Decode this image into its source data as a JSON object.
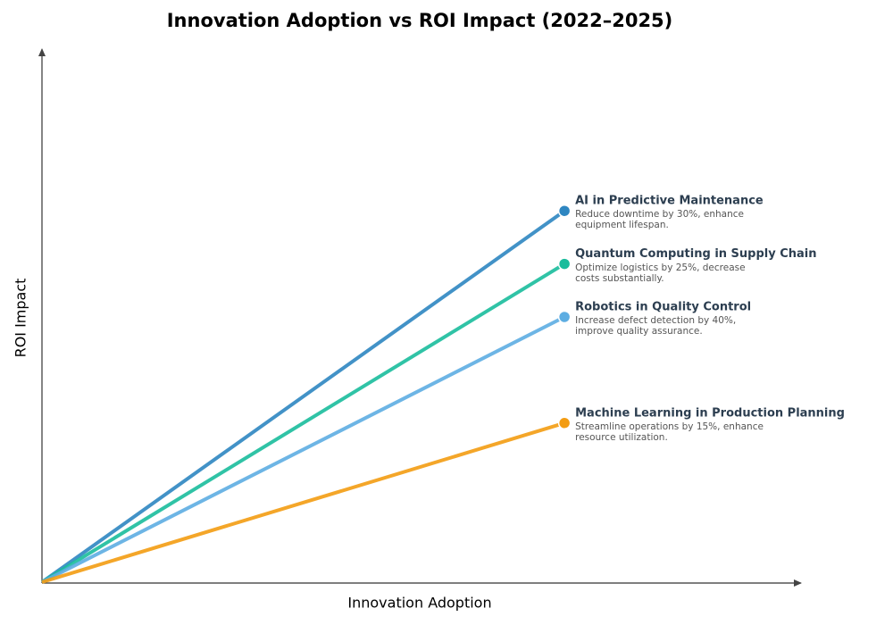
{
  "chart_data": {
    "type": "line",
    "title": "Innovation Adoption vs ROI Impact (2022–2025)",
    "x_label": "Innovation Adoption",
    "y_label": "ROI Impact",
    "x": [
      0,
      0.69
    ],
    "xlim": [
      0,
      1
    ],
    "ylim": [
      0,
      1
    ],
    "series": [
      {
        "name": "AI in Predictive Maintenance",
        "description": "Reduce downtime by 30%, enhance equipment lifespan.",
        "color": "#2e86c1",
        "values": [
          0,
          0.7
        ]
      },
      {
        "name": "Quantum Computing in Supply Chain",
        "description": "Optimize logistics by 25%, decrease costs substantially.",
        "color": "#1abc9c",
        "values": [
          0,
          0.6
        ]
      },
      {
        "name": "Robotics in Quality Control",
        "description": "Increase defect detection by 40%, improve quality assurance.",
        "color": "#5dade2",
        "values": [
          0,
          0.5
        ]
      },
      {
        "name": "Machine Learning in Production Planning",
        "description": "Streamline operations by 15%, enhance resource utilization.",
        "color": "#f39c12",
        "values": [
          0,
          0.3
        ]
      }
    ]
  }
}
